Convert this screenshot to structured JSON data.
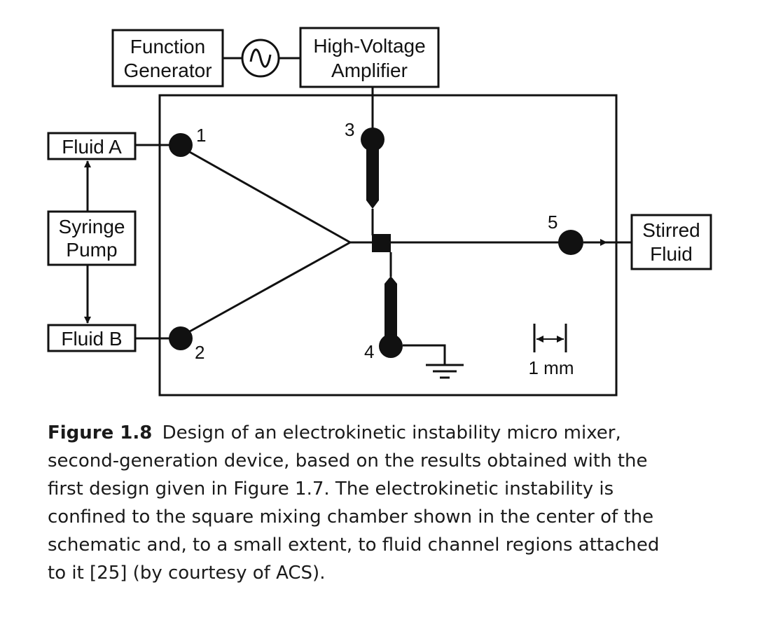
{
  "diagram": {
    "function_generator": [
      "Function",
      "Generator"
    ],
    "amplifier": [
      "High-Voltage",
      "Amplifier"
    ],
    "fluid_a": "Fluid A",
    "fluid_b": "Fluid B",
    "syringe_pump": [
      "Syringe",
      "Pump"
    ],
    "stirred_fluid": [
      "Stirred",
      "Fluid"
    ],
    "ports": [
      "1",
      "2",
      "3",
      "4",
      "5"
    ],
    "scale": "1 mm"
  },
  "caption": {
    "label": "Figure 1.8",
    "lines": [
      "Design of an electrokinetic instability micro mixer,",
      "second-generation device, based on the results obtained with the",
      "first design given in Figure 1.7. The electrokinetic instability is",
      "confined to the square mixing chamber shown in the center of the",
      "schematic and, to a small extent, to fluid channel regions attached",
      "to it [25] (by courtesy of ACS)."
    ]
  }
}
